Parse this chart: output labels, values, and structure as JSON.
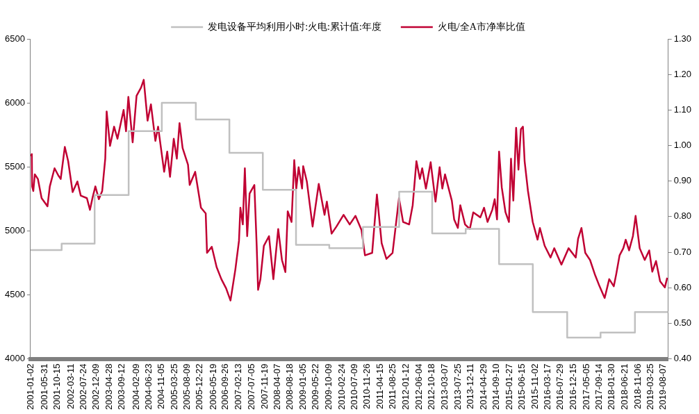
{
  "chart_data": {
    "type": "line",
    "legend": "top",
    "grid": false,
    "marker": "none",
    "line_style": "solid",
    "xlim": [
      "2001-01-01",
      "2019-09-27"
    ],
    "xticks": [
      "2001-01-02",
      "2001-05-31",
      "2001-10-15",
      "2002-03-11",
      "2002-07-24",
      "2002-12-09",
      "2003-04-28",
      "2003-09-12",
      "2004-02-09",
      "2004-06-23",
      "2004-11-05",
      "2005-03-25",
      "2005-08-09",
      "2005-12-22",
      "2006-05-19",
      "2006-09-26",
      "2007-02-13",
      "2007-07-05",
      "2007-11-19",
      "2008-04-07",
      "2008-08-18",
      "2009-01-05",
      "2009-05-22",
      "2009-10-09",
      "2010-02-24",
      "2010-07-09",
      "2010-11-26",
      "2011-04-15",
      "2011-08-25",
      "2012-01-12",
      "2012-06-04",
      "2012-10-18",
      "2013-03-07",
      "2013-07-25",
      "2013-12-11",
      "2014-04-29",
      "2014-09-10",
      "2015-01-27",
      "2015-06-15",
      "2015-11-02",
      "2016-03-17",
      "2016-07-29",
      "2016-12-15",
      "2017-05-05",
      "2017-09-14",
      "2018-01-30",
      "2018-06-21",
      "2018-11-06",
      "2019-03-25",
      "2019-08-07"
    ],
    "ylim": [
      4000,
      6500
    ],
    "yticks": [
      4000,
      4500,
      5000,
      5500,
      6000,
      6500
    ],
    "y2lim": [
      0.4,
      1.3
    ],
    "y2ticks": [
      {
        "value": 0.4,
        "label": "0.40"
      },
      {
        "value": 0.5,
        "label": "0.50"
      },
      {
        "value": 0.6,
        "label": "0.60"
      },
      {
        "value": 0.7,
        "label": "0.70"
      },
      {
        "value": 0.8,
        "label": "0.80"
      },
      {
        "value": 0.9,
        "label": "0.90"
      },
      {
        "value": 1.0,
        "label": "1.00"
      },
      {
        "value": 1.1,
        "label": "1.10"
      },
      {
        "value": 1.2,
        "label": "1.20"
      },
      {
        "value": 1.3,
        "label": "1.30"
      }
    ],
    "series": [
      {
        "name": "发电设备平均利用小时:火电:累计值:年度",
        "type": "step",
        "color": "#c0c0c0",
        "x": [
          "2001-01-02",
          "2001-12-01",
          "2002-11-20",
          "2003-11-20",
          "2004-11-10",
          "2005-11-10",
          "2006-11-05",
          "2007-10-30",
          "2008-10-20",
          "2009-10-12",
          "2010-10-08",
          "2011-11-01",
          "2012-10-20",
          "2013-10-15",
          "2014-10-08",
          "2015-10-05",
          "2016-10-08",
          "2017-10-01",
          "2018-10-05",
          "2019-09-27"
        ],
        "values": [
          4850,
          4900,
          5280,
          5780,
          6000,
          5870,
          5610,
          5320,
          4890,
          4865,
          5030,
          5305,
          4980,
          5015,
          4740,
          4365,
          4165,
          4205,
          4365,
          4365
        ]
      },
      {
        "name": "火电/全A市净率比值",
        "axis": "y2",
        "color": "#c00033",
        "x": [
          "2001-01-02",
          "2001-01-15",
          "2001-01-18",
          "2001-01-31",
          "2001-02-16",
          "2001-03-21",
          "2001-04-30",
          "2001-07-02",
          "2001-07-27",
          "2001-09-16",
          "2001-10-26",
          "2001-11-21",
          "2002-01-04",
          "2002-02-09",
          "2002-03-29",
          "2002-05-19",
          "2002-06-24",
          "2002-08-29",
          "2002-10-01",
          "2002-10-30",
          "2002-11-28",
          "2003-01-04",
          "2003-02-09",
          "2003-03-14",
          "2003-03-29",
          "2003-05-04",
          "2003-06-17",
          "2003-07-23",
          "2003-09-27",
          "2003-10-23",
          "2003-11-17",
          "2004-01-02",
          "2004-02-13",
          "2004-04-01",
          "2004-04-30",
          "2004-06-10",
          "2004-07-16",
          "2004-09-02",
          "2004-10-01",
          "2004-12-05",
          "2005-01-07",
          "2005-02-06",
          "2005-03-18",
          "2005-04-20",
          "2005-05-19",
          "2005-06-21",
          "2005-08-18",
          "2005-09-05",
          "2005-11-03",
          "2006-01-04",
          "2006-02-24",
          "2006-03-10",
          "2006-04-30",
          "2006-06-21",
          "2006-08-11",
          "2006-10-01",
          "2006-11-17",
          "2007-01-08",
          "2007-02-16",
          "2007-03-03",
          "2007-03-29",
          "2007-04-20",
          "2007-05-15",
          "2007-06-10",
          "2007-07-31",
          "2007-08-25",
          "2007-09-09",
          "2007-10-04",
          "2007-11-10",
          "2008-01-04",
          "2008-02-20",
          "2008-04-12",
          "2008-05-22",
          "2008-06-28",
          "2008-07-23",
          "2008-09-02",
          "2008-10-01",
          "2008-10-23",
          "2008-11-17",
          "2008-12-24",
          "2009-01-05",
          "2009-02-13",
          "2009-04-16",
          "2009-06-21",
          "2009-08-22",
          "2009-09-16",
          "2009-11-06",
          "2009-12-28",
          "2010-03-14",
          "2010-05-19",
          "2010-07-20",
          "2010-09-23",
          "2010-10-30",
          "2011-01-15",
          "2011-03-07",
          "2011-04-27",
          "2011-06-17",
          "2011-08-22",
          "2011-09-27",
          "2011-10-30",
          "2011-12-13",
          "2012-02-16",
          "2012-03-25",
          "2012-05-04",
          "2012-06-10",
          "2012-07-05",
          "2012-08-14",
          "2012-10-04",
          "2012-11-25",
          "2013-01-08",
          "2013-02-06",
          "2013-03-07",
          "2013-04-12",
          "2013-05-19",
          "2013-06-13",
          "2013-07-23",
          "2013-08-18",
          "2013-10-08",
          "2013-11-28",
          "2014-01-04",
          "2014-03-21",
          "2014-04-30",
          "2014-06-06",
          "2014-07-27",
          "2014-08-22",
          "2014-09-16",
          "2014-10-08",
          "2014-11-06",
          "2014-12-16",
          "2015-01-22",
          "2015-02-13",
          "2015-03-10",
          "2015-04-09",
          "2015-05-04",
          "2015-05-30",
          "2015-06-21",
          "2015-07-09",
          "2015-08-14",
          "2015-10-04",
          "2015-11-25",
          "2015-12-20",
          "2016-02-09",
          "2016-04-12",
          "2016-05-22",
          "2016-08-07",
          "2016-10-23",
          "2017-01-08",
          "2017-02-02",
          "2017-03-10",
          "2017-04-20",
          "2017-06-10",
          "2017-07-31",
          "2017-09-20",
          "2017-11-14",
          "2018-01-02",
          "2018-02-20",
          "2018-03-18",
          "2018-04-23",
          "2018-06-02",
          "2018-06-28",
          "2018-08-03",
          "2018-09-13",
          "2018-10-12",
          "2018-11-25",
          "2019-01-18",
          "2019-03-07",
          "2019-04-09",
          "2019-05-19",
          "2019-07-02",
          "2019-08-22",
          "2019-09-16"
        ],
        "values": [
          0.97,
          0.976,
          0.885,
          0.872,
          0.919,
          0.906,
          0.852,
          0.829,
          0.885,
          0.936,
          0.916,
          0.906,
          0.996,
          0.956,
          0.869,
          0.899,
          0.859,
          0.852,
          0.819,
          0.855,
          0.885,
          0.849,
          0.872,
          0.963,
          1.096,
          0.999,
          1.053,
          1.019,
          1.1,
          1.04,
          1.137,
          1.009,
          1.14,
          1.163,
          1.185,
          1.07,
          1.116,
          1.013,
          1.053,
          0.926,
          0.983,
          0.912,
          1.019,
          0.963,
          1.063,
          0.993,
          0.946,
          0.889,
          0.926,
          0.825,
          0.809,
          0.698,
          0.715,
          0.658,
          0.624,
          0.598,
          0.564,
          0.651,
          0.732,
          0.825,
          0.778,
          0.936,
          0.745,
          0.865,
          0.889,
          0.718,
          0.594,
          0.624,
          0.718,
          0.745,
          0.624,
          0.765,
          0.678,
          0.644,
          0.815,
          0.785,
          0.959,
          0.879,
          0.939,
          0.879,
          0.942,
          0.899,
          0.772,
          0.892,
          0.805,
          0.842,
          0.752,
          0.772,
          0.805,
          0.778,
          0.802,
          0.762,
          0.691,
          0.698,
          0.862,
          0.725,
          0.681,
          0.698,
          0.778,
          0.852,
          0.785,
          0.778,
          0.832,
          0.956,
          0.906,
          0.936,
          0.879,
          0.953,
          0.842,
          0.939,
          0.879,
          0.919,
          0.882,
          0.845,
          0.792,
          0.768,
          0.832,
          0.778,
          0.765,
          0.812,
          0.798,
          0.825,
          0.785,
          0.819,
          0.849,
          0.792,
          0.983,
          0.882,
          0.812,
          0.785,
          0.963,
          0.845,
          1.05,
          0.932,
          1.046,
          1.053,
          0.956,
          0.872,
          0.785,
          0.735,
          0.768,
          0.718,
          0.685,
          0.711,
          0.665,
          0.711,
          0.685,
          0.738,
          0.768,
          0.698,
          0.678,
          0.638,
          0.604,
          0.571,
          0.624,
          0.604,
          0.638,
          0.691,
          0.711,
          0.735,
          0.705,
          0.745,
          0.802,
          0.711,
          0.678,
          0.705,
          0.645,
          0.675,
          0.618,
          0.601,
          0.628
        ]
      }
    ]
  }
}
